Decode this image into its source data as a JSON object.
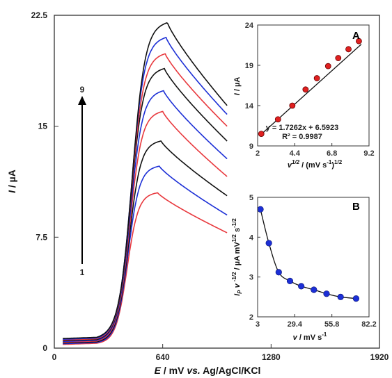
{
  "chart_data": [
    {
      "type": "line",
      "xlabel": {
        "italic_part": "E",
        "rest": " / mV ",
        "vs": "vs.",
        "ref": " Ag/AgCl/KCl"
      },
      "ylabel": {
        "italic_part": "I",
        "rest": " / µA"
      },
      "xlim": [
        0,
        1920
      ],
      "ylim": [
        0,
        22.5
      ],
      "x_ticks": [
        0,
        640,
        1280,
        1920
      ],
      "x_tick_labels": [
        "0",
        "640",
        "1280",
        "1920"
      ],
      "y_ticks": [
        0,
        7.5,
        15,
        22.5
      ],
      "y_tick_labels": [
        "0",
        "7.5",
        "15",
        "22.5"
      ],
      "grid": false,
      "arrow": {
        "from_label": "1",
        "to_label": "9"
      },
      "series_colors": [
        "#e8383d",
        "#1c2fd6",
        "#111111",
        "#e8383d",
        "#1c2fd6",
        "#111111",
        "#e8383d",
        "#1c2fd6",
        "#111111"
      ],
      "series_shape": {
        "x_start": 50,
        "x_end": 1020,
        "peak_x": [
          610,
          620,
          630,
          640,
          645,
          650,
          655,
          660,
          668
        ],
        "peak_y": [
          10.5,
          12.3,
          14.0,
          16.0,
          17.4,
          18.9,
          19.9,
          21.0,
          22.0
        ],
        "end_y": [
          7.8,
          9.0,
          10.3,
          11.6,
          12.8,
          14.0,
          15.0,
          15.8,
          16.4
        ],
        "start_y": [
          0.25,
          0.3,
          0.35,
          0.4,
          0.45,
          0.5,
          0.55,
          0.6,
          0.65
        ]
      }
    },
    {
      "type": "scatter",
      "panel_label": "A",
      "xlabel": {
        "main": "v",
        "sup1": "1/2",
        "rest": " / (mV s",
        "sup2": "-1",
        "close": ")",
        "sup3": "1/2"
      },
      "ylabel": {
        "italic_part": "I",
        "rest": " / µA"
      },
      "xlim": [
        2,
        9.2
      ],
      "ylim": [
        9,
        24
      ],
      "x_ticks": [
        2,
        4.4,
        6.8,
        9.2
      ],
      "x_tick_labels": [
        "2",
        "4.4",
        "6.8",
        "9.2"
      ],
      "y_ticks": [
        9,
        14,
        19,
        24
      ],
      "y_tick_labels": [
        "9",
        "14",
        "19",
        "24"
      ],
      "x": [
        2.236,
        3.317,
        4.243,
        5.099,
        5.831,
        6.557,
        7.211,
        7.874,
        8.544
      ],
      "y": [
        10.5,
        12.3,
        14.0,
        16.0,
        17.4,
        18.9,
        19.9,
        21.0,
        22.0
      ],
      "fit": {
        "slope": 1.7262,
        "intercept": 6.5923
      },
      "equation": "y = 1.7262x + 6.5923",
      "r_squared": "R² = 0.9987",
      "marker_color": "#e02020"
    },
    {
      "type": "scatter",
      "panel_label": "B",
      "xlabel": {
        "italic_part": "v",
        "rest": " / mV s",
        "sup": "-1"
      },
      "ylabel": {
        "main": "I",
        "sub": "P",
        "mid": " v ",
        "sup1": "-1/2",
        "rest": " / µA mV",
        "sup2": "1/2",
        "rest2": " s",
        "sup3": "-1/2"
      },
      "xlim": [
        3,
        82.2
      ],
      "ylim": [
        2,
        5
      ],
      "x_ticks": [
        3,
        29.4,
        55.8,
        82.2
      ],
      "x_tick_labels": [
        "3",
        "29.4",
        "55.8",
        "82.2"
      ],
      "y_ticks": [
        2,
        3,
        4,
        5
      ],
      "y_tick_labels": [
        "2",
        "3",
        "4",
        "5"
      ],
      "x": [
        5,
        11,
        18,
        26,
        34,
        43,
        52,
        62,
        73
      ],
      "y": [
        4.7,
        3.85,
        3.12,
        2.9,
        2.77,
        2.68,
        2.58,
        2.5,
        2.46
      ],
      "marker_color": "#1c2fd6"
    }
  ]
}
